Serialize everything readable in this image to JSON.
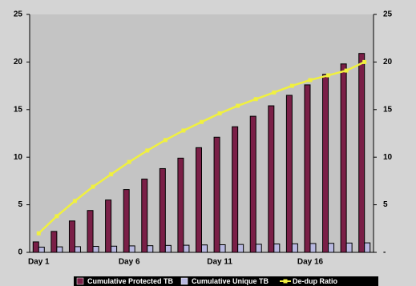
{
  "chart_data": {
    "type": "bar_line",
    "categories": [
      "Day 1",
      null,
      null,
      null,
      null,
      "Day 6",
      null,
      null,
      null,
      null,
      "Day 11",
      null,
      null,
      null,
      null,
      "Day 16",
      null,
      null,
      null
    ],
    "series": [
      {
        "name": "Cumulative Protected TB",
        "color": "#7a1f47",
        "values": [
          1.1,
          2.2,
          3.3,
          4.4,
          5.5,
          6.6,
          7.7,
          8.8,
          9.9,
          11.0,
          12.1,
          13.2,
          14.3,
          15.4,
          16.5,
          17.6,
          18.7,
          19.8,
          20.9
        ]
      },
      {
        "name": "Cumulative Unique TB",
        "color": "#b8b8e0",
        "values": [
          0.55,
          0.58,
          0.6,
          0.63,
          0.65,
          0.68,
          0.7,
          0.73,
          0.75,
          0.78,
          0.8,
          0.83,
          0.85,
          0.88,
          0.9,
          0.93,
          0.95,
          0.98,
          1.0
        ]
      },
      {
        "name": "De-dup Ratio",
        "color": "#f0f040",
        "axis": "y2",
        "values": [
          2.0,
          3.8,
          5.4,
          6.9,
          8.2,
          9.5,
          10.7,
          11.8,
          12.8,
          13.7,
          14.6,
          15.4,
          16.1,
          16.8,
          17.5,
          18.1,
          18.6,
          19.1,
          20.0
        ]
      }
    ],
    "ylim": [
      0,
      25
    ],
    "yticks": [
      0,
      5,
      10,
      15,
      20,
      25
    ],
    "y2lim": [
      0,
      25
    ],
    "y2ticks": [
      {
        "value": 0,
        "label": "-"
      },
      5,
      10,
      15,
      20,
      25
    ]
  }
}
